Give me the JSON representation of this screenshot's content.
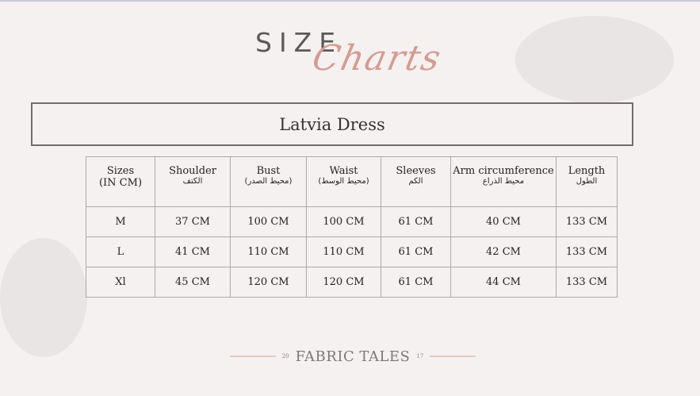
{
  "header": {
    "size_word": "SIZE",
    "charts_word": "Charts"
  },
  "title": "Latvia Dress",
  "table": {
    "headers": [
      {
        "en": "Sizes",
        "sub": "(IN CM)"
      },
      {
        "en": "Shoulder",
        "sub": "الكتف"
      },
      {
        "en": "Bust",
        "sub": "(محيط الصدر)"
      },
      {
        "en": "Waist",
        "sub": "(محيط الوسط)"
      },
      {
        "en": "Sleeves",
        "sub": "الكم"
      },
      {
        "en": "Arm circumference",
        "sub": "محيط الذراع"
      },
      {
        "en": "Length",
        "sub": "الطول"
      }
    ],
    "rows": [
      [
        "M",
        "37 CM",
        "100 CM",
        "100 CM",
        "61 CM",
        "40 CM",
        "133 CM"
      ],
      [
        "L",
        "41 CM",
        "110 CM",
        "110 CM",
        "61 CM",
        "42 CM",
        "133 CM"
      ],
      [
        "Xl",
        "45 CM",
        "120 CM",
        "120 CM",
        "61 CM",
        "44 CM",
        "133 CM"
      ]
    ]
  },
  "footer": {
    "brand": "FABRIC TALES",
    "year_left": "20",
    "year_right": "17"
  },
  "colors": {
    "accent": "#d49c92",
    "background": "#f5f1f0"
  }
}
